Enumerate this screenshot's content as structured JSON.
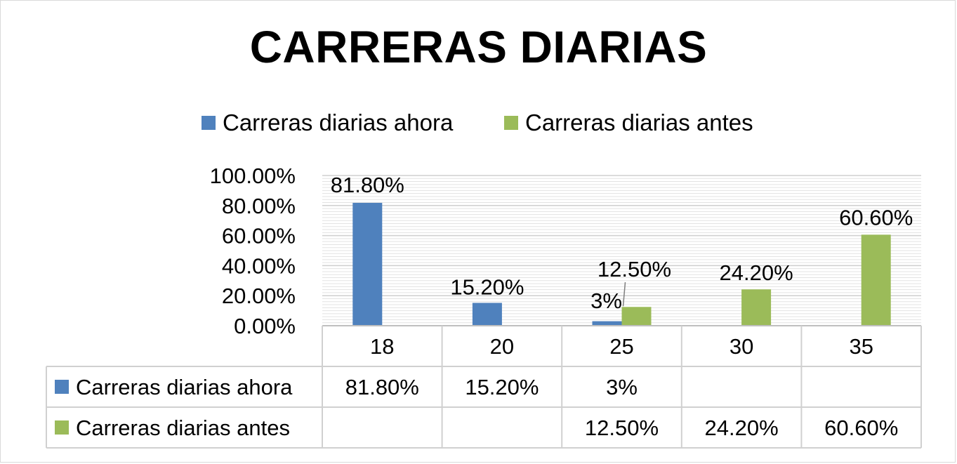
{
  "chart_data": {
    "type": "bar",
    "title": "CARRERAS DIARIAS",
    "categories": [
      "18",
      "20",
      "25",
      "30",
      "35"
    ],
    "series": [
      {
        "name": "Carreras diarias ahora",
        "color": "#4f81bd",
        "values": [
          0.818,
          0.152,
          0.03,
          null,
          null
        ],
        "labels": [
          "81.80%",
          "15.20%",
          "3%",
          "",
          ""
        ]
      },
      {
        "name": "Carreras diarias antes",
        "color": "#9bbb59",
        "values": [
          null,
          null,
          0.125,
          0.242,
          0.606
        ],
        "labels": [
          "",
          "",
          "12.50%",
          "24.20%",
          "60.60%"
        ]
      }
    ],
    "yticks": [
      "100.00%",
      "80.00%",
      "60.00%",
      "40.00%",
      "20.00%",
      "0.00%"
    ],
    "ylim": [
      0,
      1
    ],
    "grid": true,
    "legend": "top",
    "data_table": true
  }
}
